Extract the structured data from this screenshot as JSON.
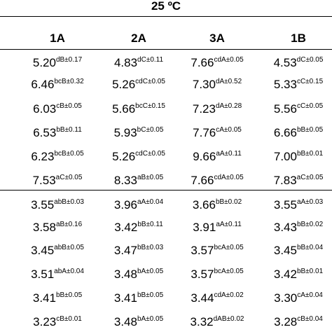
{
  "title": "25 ºC",
  "columns": [
    "1A",
    "2A",
    "3A",
    "1B"
  ],
  "groups": [
    {
      "rows": [
        [
          {
            "v": "5.20",
            "s": "dB±0.17"
          },
          {
            "v": "4.83",
            "s": "dC±0.11"
          },
          {
            "v": "7.66",
            "s": "cdA±0.05"
          },
          {
            "v": "4.53",
            "s": "dC±0.05"
          }
        ],
        [
          {
            "v": "6.46",
            "s": "bcB±0.32"
          },
          {
            "v": "5.26",
            "s": "cdC±0.05"
          },
          {
            "v": "7.30",
            "s": "dA±0.52"
          },
          {
            "v": "5.33",
            "s": "cC±0.15"
          }
        ],
        [
          {
            "v": "6.03",
            "s": "cB±0.05"
          },
          {
            "v": "5.66",
            "s": "bcC±0.15"
          },
          {
            "v": "7.23",
            "s": "dA±0.28"
          },
          {
            "v": "5.56",
            "s": "cC±0.05"
          }
        ],
        [
          {
            "v": "6.53",
            "s": "bB±0.11"
          },
          {
            "v": "5.93",
            "s": "bC±0.05"
          },
          {
            "v": "7.76",
            "s": "cA±0.05"
          },
          {
            "v": "6.66",
            "s": "bB±0.05"
          }
        ],
        [
          {
            "v": "6.23",
            "s": "bcB±0.05"
          },
          {
            "v": "5.26",
            "s": "cdC±0.05"
          },
          {
            "v": "9.66",
            "s": "aA±0.11"
          },
          {
            "v": "7.00",
            "s": "bB±0.01"
          }
        ],
        [
          {
            "v": "7.53",
            "s": "aC±0.05"
          },
          {
            "v": "8.33",
            "s": "aB±0.05"
          },
          {
            "v": "7.66",
            "s": "cdA±0.05"
          },
          {
            "v": "7.83",
            "s": "aC±0.05"
          }
        ]
      ]
    },
    {
      "rows": [
        [
          {
            "v": "3.55",
            "s": "abB±0.03"
          },
          {
            "v": "3.96",
            "s": "aA±0.04"
          },
          {
            "v": "3.66",
            "s": "bB±0.02"
          },
          {
            "v": "3.55",
            "s": "aA±0.03"
          }
        ],
        [
          {
            "v": "3.58",
            "s": "aB±0.16"
          },
          {
            "v": "3.42",
            "s": "bB±0.11"
          },
          {
            "v": "3.91",
            "s": "aA±0.11"
          },
          {
            "v": "3.43",
            "s": "bB±0.02"
          }
        ],
        [
          {
            "v": "3.45",
            "s": "abB±0.05"
          },
          {
            "v": "3.47",
            "s": "bB±0.03"
          },
          {
            "v": "3.57",
            "s": "bcA±0.05"
          },
          {
            "v": "3.45",
            "s": "bB±0.04"
          }
        ],
        [
          {
            "v": "3.51",
            "s": "abA±0.04"
          },
          {
            "v": "3.48",
            "s": "bA±0.05"
          },
          {
            "v": "3.57",
            "s": "bcA±0.05"
          },
          {
            "v": "3.42",
            "s": "bB±0.01"
          }
        ],
        [
          {
            "v": "3.41",
            "s": "bB±0.05"
          },
          {
            "v": "3.41",
            "s": "bB±0.05"
          },
          {
            "v": "3.44",
            "s": "cdA±0.02"
          },
          {
            "v": "3.30",
            "s": "cA±0.04"
          }
        ],
        [
          {
            "v": "3.23",
            "s": "cB±0.01"
          },
          {
            "v": "3.48",
            "s": "bA±0.05"
          },
          {
            "v": "3.32",
            "s": "dAB±0.02"
          },
          {
            "v": "3.28",
            "s": "cB±0.04"
          }
        ]
      ]
    }
  ]
}
